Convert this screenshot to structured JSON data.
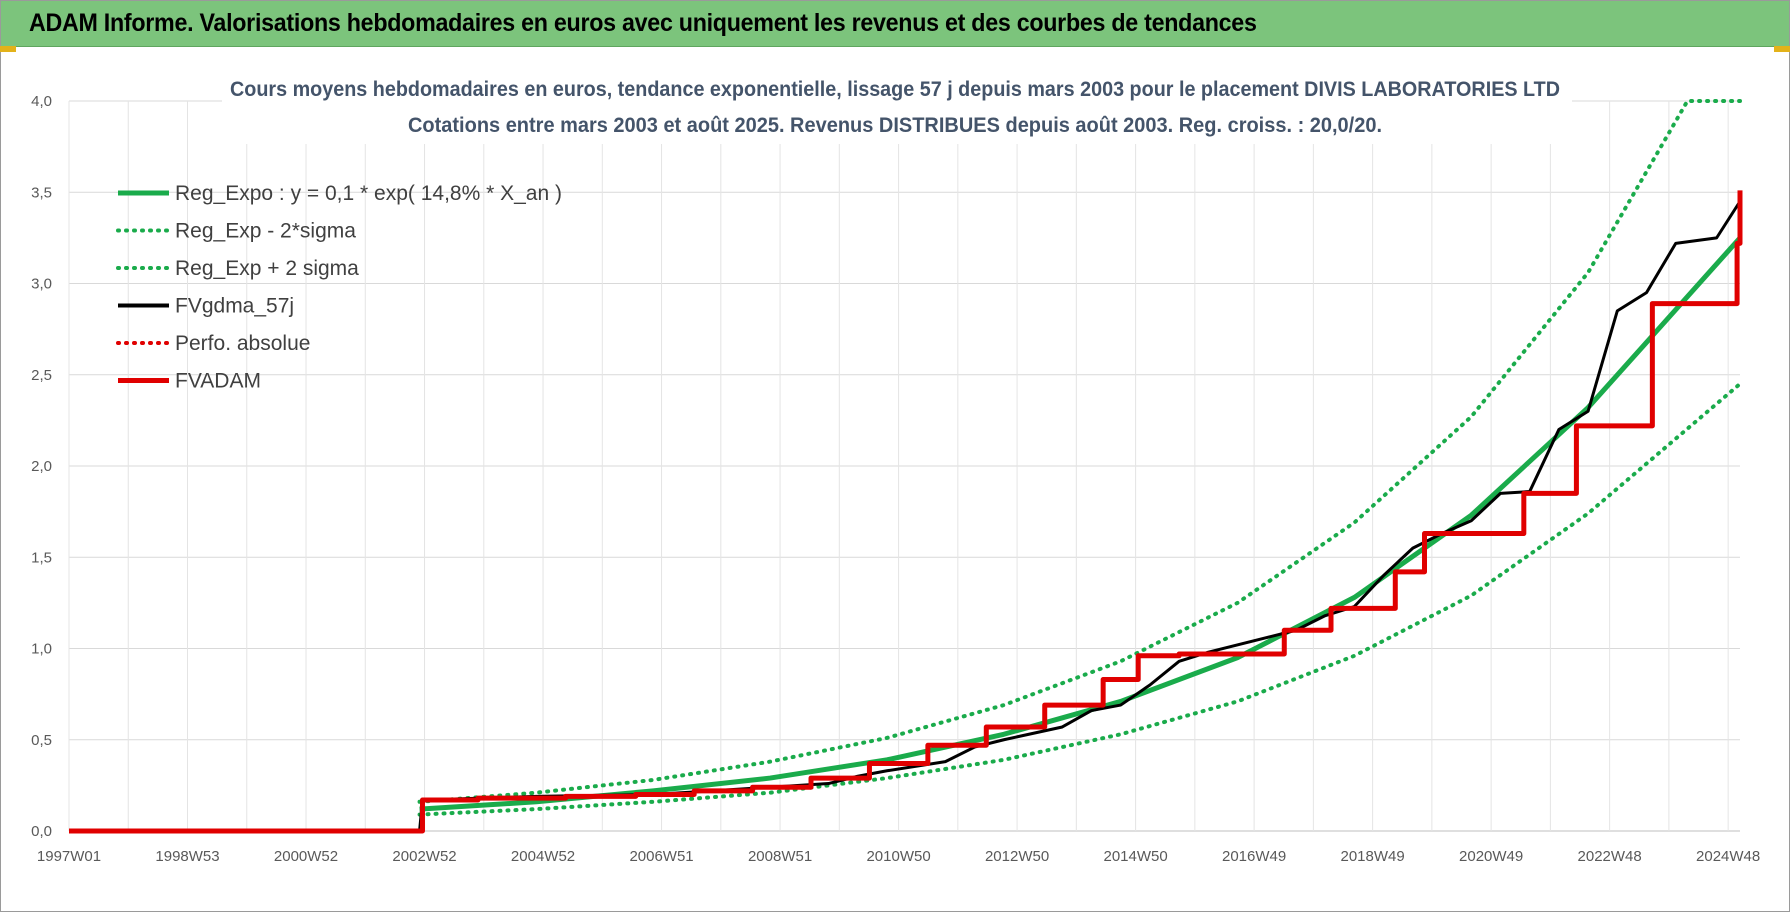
{
  "banner": {
    "title": "ADAM Informe. Valorisations hebdomadaires en euros avec uniquement les revenus et des courbes de tendances"
  },
  "chart_data": {
    "type": "line",
    "title": "Cours moyens hebdomadaires en euros, tendance exponentielle, lissage 57 j depuis mars 2003 pour le placement DIVIS LABORATORIES LTD",
    "subtitle": "Cotations entre mars 2003 et août 2025. Revenus DISTRIBUES depuis août 2003. Reg. croiss. : 20,0/20.",
    "xlabel": "",
    "ylabel": "",
    "x_ticks": [
      "1997W01",
      "1998W53",
      "2000W52",
      "2002W52",
      "2004W52",
      "2006W51",
      "2008W51",
      "2010W50",
      "2012W50",
      "2014W50",
      "2016W49",
      "2018W49",
      "2020W49",
      "2022W48",
      "2024W48"
    ],
    "x_range": [
      1997.0,
      2025.6
    ],
    "ylim": [
      0,
      4
    ],
    "y_ticks": [
      "0,0",
      "0,5",
      "1,0",
      "1,5",
      "2,0",
      "2,5",
      "3,0",
      "3,5",
      "4,0"
    ],
    "grid": true,
    "legend_position": "top-left",
    "series": [
      {
        "name": "Reg_Expo : y = 0,1 * exp( 14,8% *  X_an )",
        "color": "#1aab4b",
        "style": "solid",
        "x": [
          2003.0,
          2005.0,
          2007.0,
          2009.0,
          2011.0,
          2013.0,
          2015.0,
          2017.0,
          2019.0,
          2021.0,
          2023.0,
          2025.6
        ],
        "y": [
          0.12,
          0.16,
          0.22,
          0.29,
          0.39,
          0.53,
          0.71,
          0.95,
          1.28,
          1.73,
          2.32,
          3.25
        ]
      },
      {
        "name": "Reg_Exp - 2*sigma",
        "color": "#1aab4b",
        "style": "dotted",
        "x": [
          2003.0,
          2005.0,
          2007.0,
          2009.0,
          2011.0,
          2013.0,
          2015.0,
          2017.0,
          2019.0,
          2021.0,
          2023.0,
          2025.6
        ],
        "y": [
          0.09,
          0.12,
          0.16,
          0.21,
          0.29,
          0.39,
          0.53,
          0.71,
          0.96,
          1.29,
          1.74,
          2.45
        ]
      },
      {
        "name": "Reg_Exp + 2 sigma",
        "color": "#1aab4b",
        "style": "dotted",
        "x": [
          2003.0,
          2005.0,
          2007.0,
          2009.0,
          2011.0,
          2013.0,
          2015.0,
          2017.0,
          2019.0,
          2021.0,
          2023.0,
          2024.7,
          2025.6
        ],
        "y": [
          0.16,
          0.21,
          0.28,
          0.38,
          0.51,
          0.69,
          0.93,
          1.25,
          1.69,
          2.27,
          3.06,
          4.0,
          4.0
        ]
      },
      {
        "name": "FVgdma_57j",
        "color": "#000000",
        "style": "solid",
        "x": [
          1997.0,
          2003.0,
          2003.05,
          2005.0,
          2007.0,
          2008.0,
          2009.0,
          2010.0,
          2010.5,
          2011.0,
          2012.0,
          2012.5,
          2013.0,
          2014.0,
          2014.5,
          2015.0,
          2015.5,
          2016.0,
          2016.5,
          2017.5,
          2018.0,
          2018.5,
          2019.0,
          2019.5,
          2020.0,
          2020.5,
          2021.0,
          2021.5,
          2022.0,
          2022.5,
          2023.0,
          2023.5,
          2024.0,
          2024.5,
          2025.2,
          2025.6
        ],
        "y": [
          0.0,
          0.0,
          0.17,
          0.19,
          0.2,
          0.22,
          0.24,
          0.26,
          0.3,
          0.33,
          0.38,
          0.46,
          0.5,
          0.57,
          0.66,
          0.69,
          0.8,
          0.93,
          0.98,
          1.06,
          1.1,
          1.18,
          1.23,
          1.4,
          1.55,
          1.63,
          1.7,
          1.85,
          1.86,
          2.2,
          2.3,
          2.85,
          2.95,
          3.22,
          3.25,
          3.45
        ]
      },
      {
        "name": "Perfo. absolue",
        "color": "#e00000",
        "style": "dotted",
        "x": [],
        "y": []
      },
      {
        "name": "FVADAM",
        "color": "#e00000",
        "style": "step",
        "x": [
          1997.0,
          2003.0,
          2003.05,
          2004.0,
          2005.5,
          2006.7,
          2007.7,
          2008.7,
          2009.7,
          2010.7,
          2011.7,
          2012.7,
          2013.7,
          2014.7,
          2015.3,
          2016.0,
          2017.8,
          2018.6,
          2019.7,
          2020.2,
          2021.9,
          2022.8,
          2024.1,
          2025.55,
          2025.6
        ],
        "y": [
          0.0,
          0.0,
          0.17,
          0.18,
          0.19,
          0.2,
          0.22,
          0.24,
          0.29,
          0.37,
          0.47,
          0.57,
          0.69,
          0.83,
          0.96,
          0.97,
          1.1,
          1.22,
          1.42,
          1.63,
          1.85,
          2.22,
          2.89,
          3.22,
          3.51
        ]
      }
    ]
  }
}
